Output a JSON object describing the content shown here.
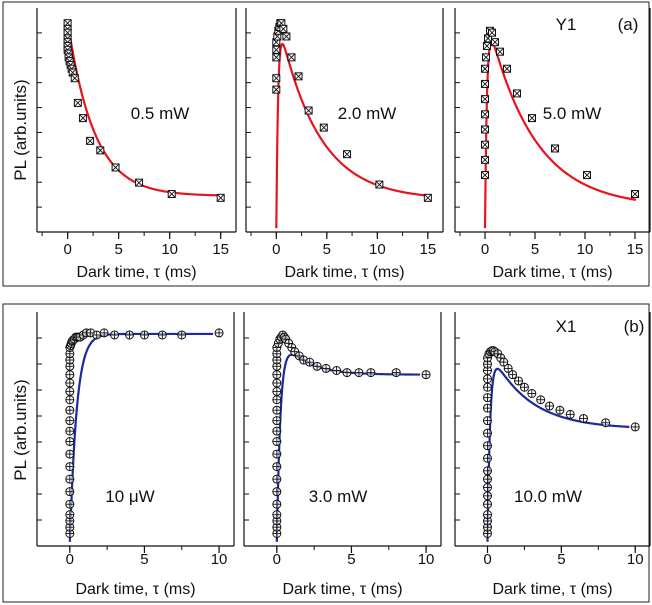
{
  "chart_data": [
    {
      "figure_label": "(a)",
      "emitter_label": "Y1",
      "type": "scatter",
      "ylabel": "PL (arb.units)",
      "marker": "square-cross",
      "fit_color": "#e8141c",
      "panels": [
        {
          "label": "0.5 mW",
          "xlabel": "Dark time, τ (ms)",
          "xlim": [
            -3,
            16.5
          ],
          "ylim": [
            0,
            1.18
          ],
          "xticks": [
            "0",
            "5",
            "10",
            "15"
          ],
          "x": [
            0,
            0,
            0,
            0,
            0,
            0,
            0,
            0.1,
            0.1,
            0.2,
            0.3,
            0.4,
            0.5,
            0.7,
            1,
            1.5,
            2.2,
            3.2,
            4.7,
            7,
            10.2,
            15
          ],
          "y": [
            1.1,
            1.07,
            1.05,
            1.02,
            1.0,
            0.98,
            0.96,
            0.94,
            0.92,
            0.9,
            0.88,
            0.86,
            0.84,
            0.81,
            0.68,
            0.6,
            0.48,
            0.43,
            0.34,
            0.26,
            0.2,
            0.18
          ],
          "fit": {
            "y0": 0.19,
            "amp": 0.92,
            "tau": 2.6
          }
        },
        {
          "label": "2.0 mW",
          "xlabel": "Dark time, τ (ms)",
          "xlim": [
            -3,
            16.5
          ],
          "ylim": [
            0,
            1.18
          ],
          "xticks": [
            "0",
            "5",
            "10",
            "15"
          ],
          "x": [
            0,
            0,
            0,
            0,
            0,
            0.1,
            0.2,
            0.3,
            0.4,
            0.5,
            0.7,
            1,
            1.5,
            2.2,
            3.2,
            4.7,
            7,
            10.2,
            15
          ],
          "y": [
            0.75,
            0.81,
            0.92,
            0.96,
            1.0,
            1.03,
            1.06,
            1.08,
            1.1,
            1.1,
            1.07,
            1.03,
            0.92,
            0.82,
            0.64,
            0.55,
            0.41,
            0.25,
            0.18
          ],
          "fit": {
            "y0": 0.17,
            "amp": 1.0,
            "tau": 3.9,
            "rise": 0.18
          }
        },
        {
          "label": "5.0 mW",
          "xlabel": "Dark time, τ (ms)",
          "xlim": [
            -3,
            16.5
          ],
          "ylim": [
            0,
            1.18
          ],
          "xticks": [
            "0",
            "5",
            "10",
            "15"
          ],
          "x": [
            0,
            0,
            0,
            0,
            0,
            0,
            0,
            0,
            0.1,
            0.2,
            0.3,
            0.5,
            0.7,
            1,
            1.5,
            2.2,
            3.2,
            4.7,
            7,
            10.2,
            15
          ],
          "y": [
            0.3,
            0.38,
            0.46,
            0.54,
            0.62,
            0.7,
            0.78,
            0.86,
            0.92,
            0.98,
            1.02,
            1.06,
            1.05,
            1.0,
            0.95,
            0.86,
            0.73,
            0.6,
            0.44,
            0.3,
            0.2
          ],
          "fit": {
            "y0": 0.13,
            "amp": 1.05,
            "tau": 4.6,
            "rise": 0.2
          }
        }
      ]
    },
    {
      "figure_label": "(b)",
      "emitter_label": "X1",
      "type": "scatter",
      "ylabel": "PL (arb.units)",
      "marker": "circle-cross",
      "fit_color": "#1c2a9e",
      "panels": [
        {
          "label": "10 μW",
          "xlabel": "Dark time, τ (ms)",
          "xlim": [
            -2.2,
            11
          ],
          "ylim": [
            0,
            1.12
          ],
          "xticks": [
            "0",
            "5",
            "10"
          ],
          "x": [
            0,
            0,
            0,
            0,
            0,
            0,
            0,
            0,
            0,
            0,
            0,
            0,
            0,
            0,
            0,
            0,
            0,
            0,
            0,
            0,
            0,
            0.05,
            0.1,
            0.15,
            0.2,
            0.3,
            0.4,
            0.5,
            0.6,
            0.7,
            0.9,
            1.1,
            1.4,
            1.8,
            2.3,
            3,
            4,
            5,
            6.2,
            7.5,
            10
          ],
          "y": [
            0.06,
            0.09,
            0.12,
            0.15,
            0.2,
            0.26,
            0.32,
            0.38,
            0.44,
            0.5,
            0.55,
            0.6,
            0.65,
            0.7,
            0.74,
            0.78,
            0.82,
            0.86,
            0.89,
            0.92,
            0.95,
            0.96,
            0.97,
            0.98,
            0.985,
            0.99,
            1.0,
            1.0,
            1.0,
            1.0,
            1.01,
            1.02,
            1.02,
            1.01,
            1.02,
            1.01,
            1.01,
            1.01,
            1.01,
            1.01,
            1.02
          ],
          "fit": {
            "y0": 1.015,
            "amp": 0,
            "tau": 1,
            "rise": 0.45
          }
        },
        {
          "label": "3.0 mW",
          "xlabel": "Dark time, τ (ms)",
          "xlim": [
            -2.2,
            11
          ],
          "ylim": [
            0,
            1.12
          ],
          "xticks": [
            "0",
            "5",
            "10"
          ],
          "x": [
            0,
            0,
            0,
            0,
            0,
            0,
            0,
            0,
            0,
            0,
            0,
            0,
            0,
            0,
            0,
            0,
            0,
            0,
            0,
            0,
            0,
            0.1,
            0.2,
            0.3,
            0.4,
            0.5,
            0.6,
            0.8,
            1,
            1.2,
            1.5,
            1.8,
            2.2,
            2.7,
            3.3,
            4,
            4.7,
            5.5,
            6.3,
            8,
            10
          ],
          "y": [
            0.06,
            0.09,
            0.12,
            0.15,
            0.2,
            0.26,
            0.32,
            0.38,
            0.44,
            0.5,
            0.55,
            0.6,
            0.65,
            0.7,
            0.74,
            0.78,
            0.82,
            0.86,
            0.89,
            0.92,
            0.95,
            0.97,
            0.99,
            1.0,
            1.01,
            1.0,
            0.99,
            0.97,
            0.95,
            0.93,
            0.91,
            0.89,
            0.88,
            0.86,
            0.85,
            0.84,
            0.83,
            0.83,
            0.83,
            0.83,
            0.82
          ],
          "fit": {
            "y0": 0.82,
            "amp": 0.21,
            "tau": 1.6,
            "rise": 0.25
          }
        },
        {
          "label": "10.0 mW",
          "xlabel": "Dark time, τ (ms)",
          "xlim": [
            -2.2,
            11
          ],
          "ylim": [
            0,
            1.12
          ],
          "xticks": [
            "0",
            "5",
            "10"
          ],
          "x": [
            0,
            0,
            0,
            0,
            0,
            0,
            0,
            0,
            0,
            0,
            0,
            0,
            0,
            0,
            0,
            0,
            0,
            0,
            0,
            0,
            0.1,
            0.2,
            0.3,
            0.4,
            0.5,
            0.7,
            0.9,
            1.1,
            1.4,
            1.7,
            2.1,
            2.5,
            3,
            3.6,
            4.2,
            4.9,
            5.6,
            6.5,
            8,
            10
          ],
          "y": [
            0.06,
            0.09,
            0.12,
            0.15,
            0.2,
            0.24,
            0.28,
            0.32,
            0.36,
            0.42,
            0.48,
            0.54,
            0.6,
            0.66,
            0.71,
            0.76,
            0.8,
            0.84,
            0.87,
            0.9,
            0.92,
            0.93,
            0.935,
            0.935,
            0.93,
            0.92,
            0.9,
            0.88,
            0.85,
            0.82,
            0.79,
            0.76,
            0.73,
            0.7,
            0.67,
            0.65,
            0.63,
            0.61,
            0.59,
            0.57
          ],
          "fit": {
            "y0": 0.56,
            "amp": 0.4,
            "tau": 2.6,
            "rise": 0.18
          }
        }
      ]
    }
  ]
}
